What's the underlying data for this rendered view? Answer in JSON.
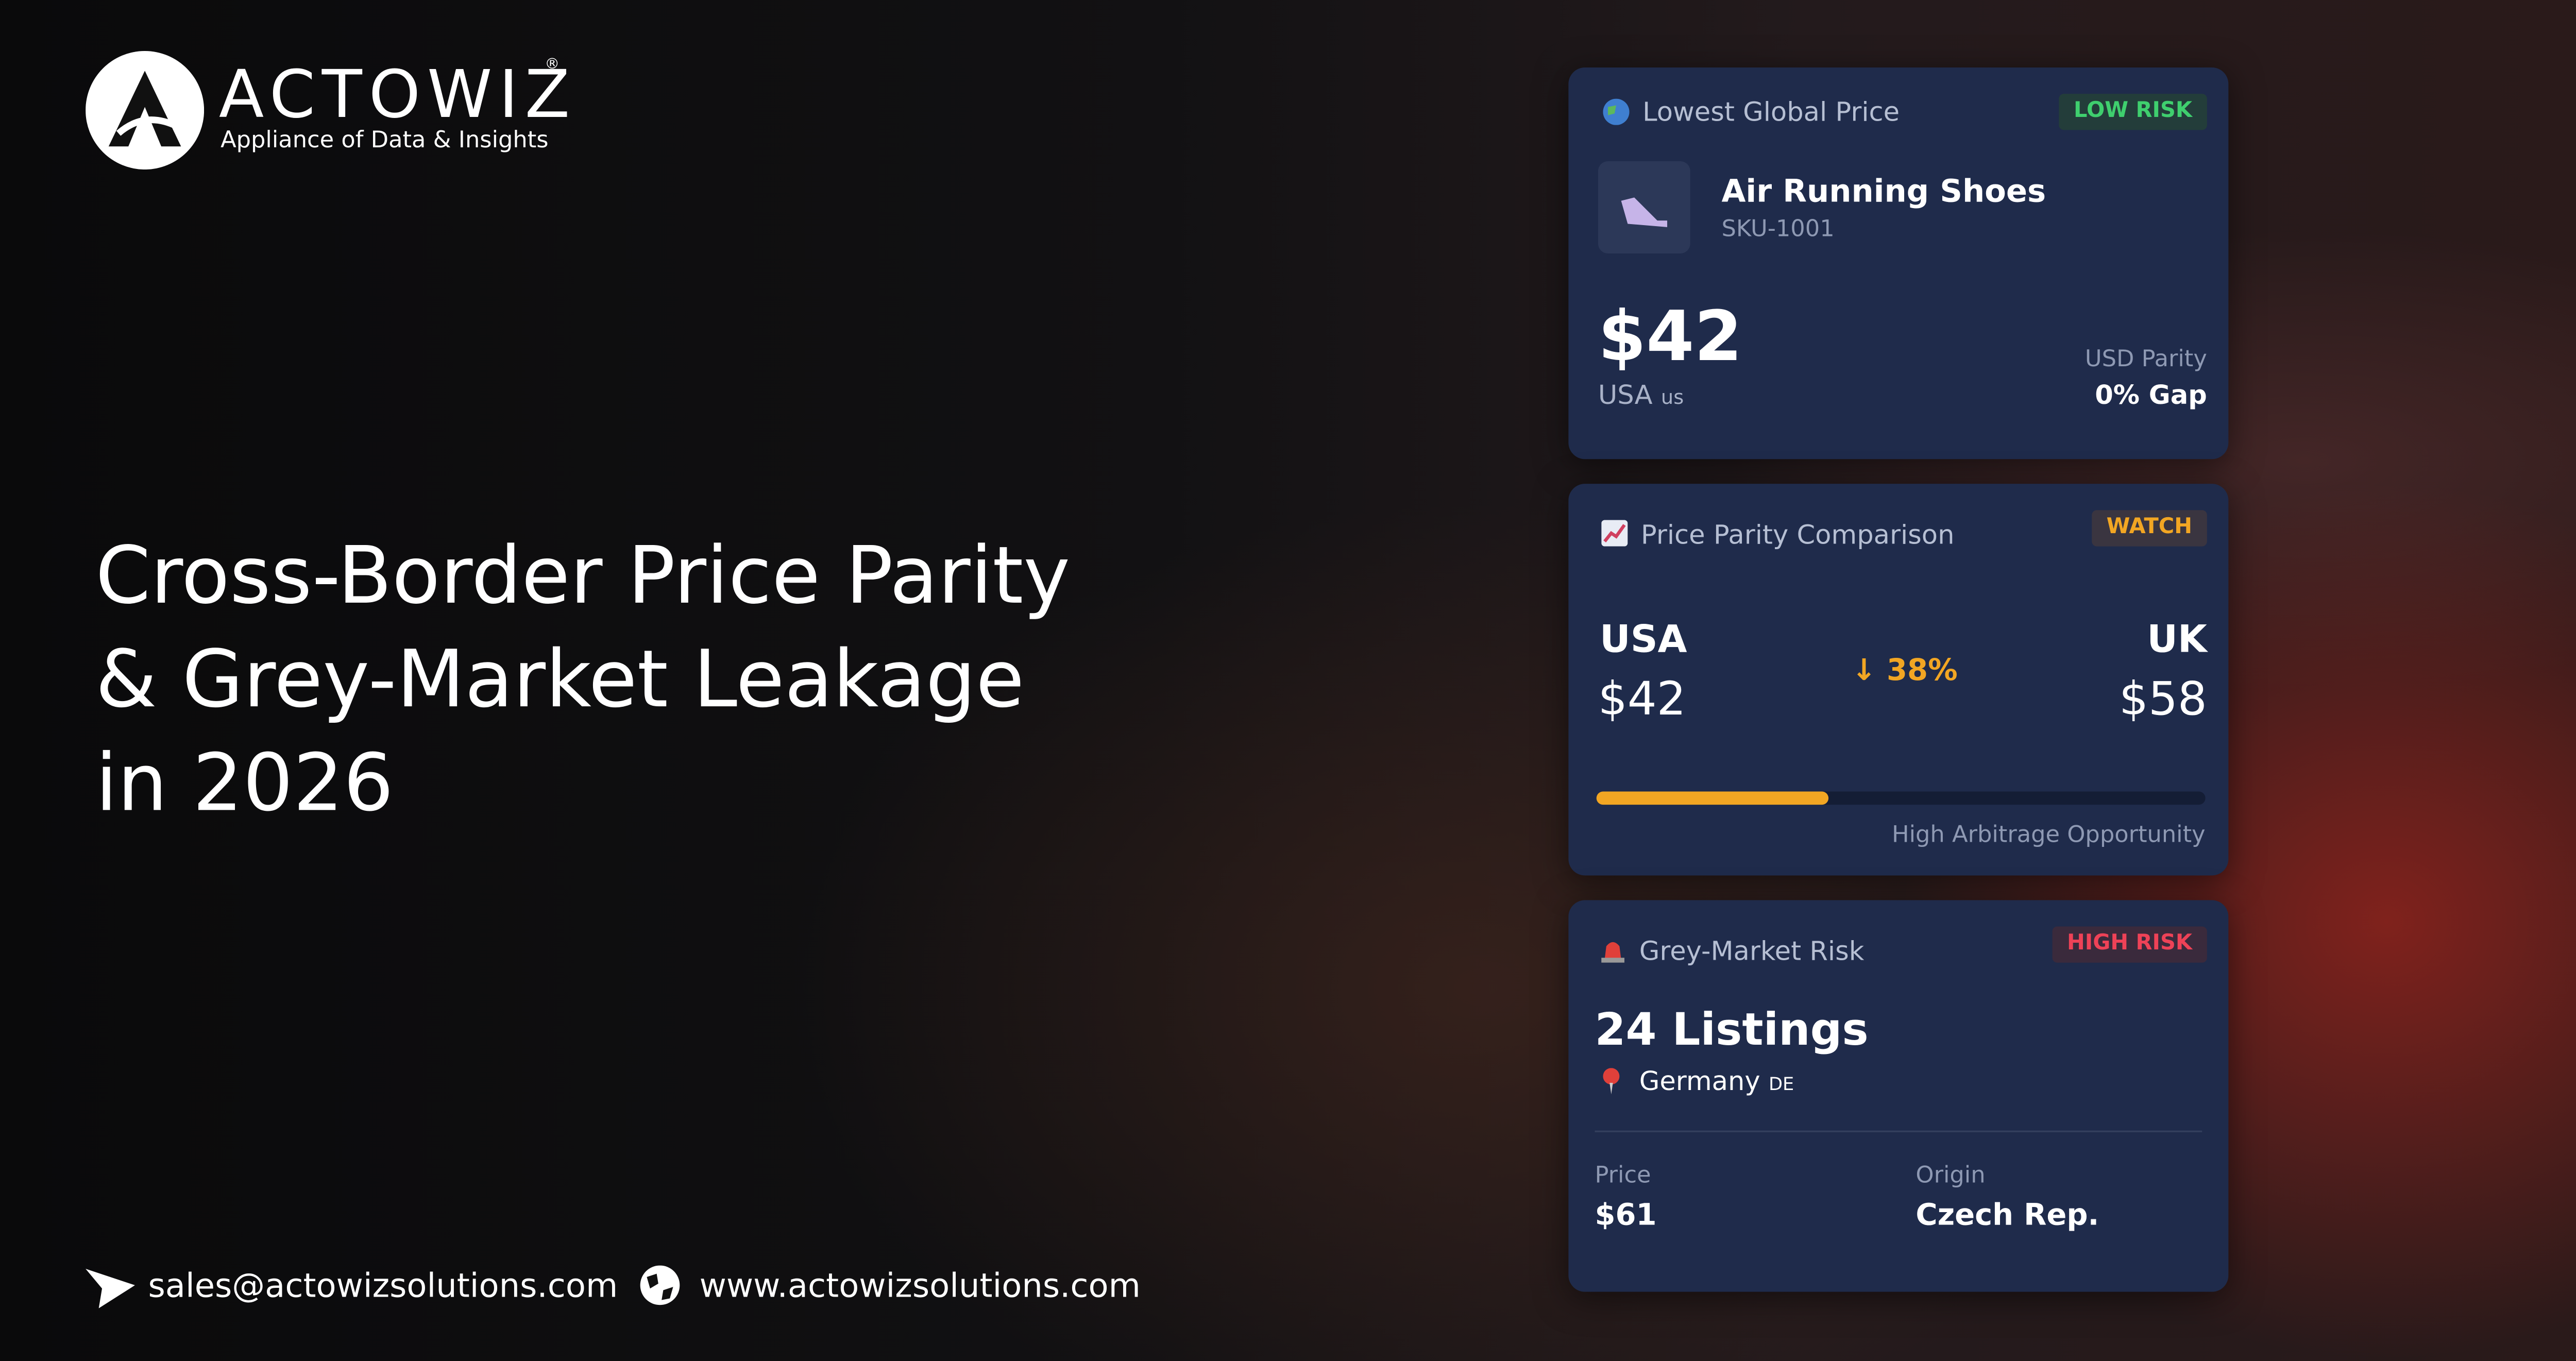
{
  "brand": {
    "name": "ACTOWIZ",
    "registered": "®",
    "tagline": "Appliance of Data & Insights"
  },
  "headline": [
    "Cross-Border Price Parity",
    "& Grey-Market Leakage",
    "in 2026"
  ],
  "contact": {
    "email": "sales@actowizsolutions.com",
    "website": "www.actowizsolutions.com"
  },
  "cards": [
    {
      "title": "Lowest Global Price",
      "badge": "LOW RISK",
      "product": "Air Running Shoes",
      "sku": "SKU-1001",
      "price": "$42",
      "country": "USA",
      "flag": "us",
      "parity_label": "USD Parity",
      "parity_value": "0% Gap"
    },
    {
      "title": "Price Parity Comparison",
      "badge": "WATCH",
      "left_country": "USA",
      "left_price": "$42",
      "change": "38%",
      "progress": 38,
      "right_country": "UK",
      "right_price": "$58",
      "note": "High Arbitrage Opportunity"
    },
    {
      "title": "Grey-Market Risk",
      "badge": "HIGH RISK",
      "listings": "24 Listings",
      "location": "Germany",
      "flag": "DE",
      "price_label": "Price",
      "price": "$61",
      "origin_label": "Origin",
      "origin": "Czech Rep."
    }
  ]
}
